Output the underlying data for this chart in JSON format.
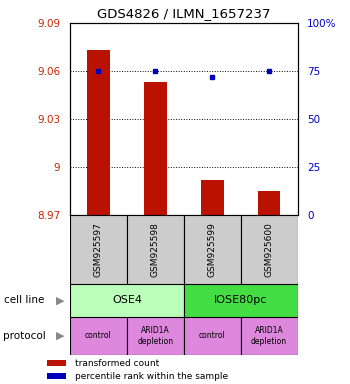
{
  "title": "GDS4826 / ILMN_1657237",
  "samples": [
    "GSM925597",
    "GSM925598",
    "GSM925599",
    "GSM925600"
  ],
  "bar_values": [
    9.073,
    9.053,
    8.992,
    8.985
  ],
  "dot_values": [
    75,
    75,
    72,
    75
  ],
  "ylim_left": [
    8.97,
    9.09
  ],
  "ylim_right": [
    0,
    100
  ],
  "yticks_left": [
    8.97,
    9.0,
    9.03,
    9.06,
    9.09
  ],
  "yticks_right": [
    0,
    25,
    50,
    75,
    100
  ],
  "ytick_labels_left": [
    "8.97",
    "9",
    "9.03",
    "9.06",
    "9.09"
  ],
  "ytick_labels_right": [
    "0",
    "25",
    "50",
    "75",
    "100%"
  ],
  "bar_color": "#bb1100",
  "dot_color": "#0000bb",
  "bar_bottom": 8.97,
  "cell_line_labels": [
    "OSE4",
    "IOSE80pc"
  ],
  "cell_line_colors": [
    "#bbffbb",
    "#44dd44"
  ],
  "cell_line_spans": [
    [
      0,
      2
    ],
    [
      2,
      4
    ]
  ],
  "protocol_labels": [
    "control",
    "ARID1A\ndepletion",
    "control",
    "ARID1A\ndepletion"
  ],
  "protocol_color": "#dd88dd",
  "sample_box_color": "#cccccc",
  "legend_bar_label": "transformed count",
  "legend_dot_label": "percentile rank within the sample",
  "left_label_color": "#cc2200",
  "right_label_color": "#0000cc",
  "cell_line_row_label": "cell line",
  "protocol_row_label": "protocol",
  "grid_color": "#000000",
  "background_color": "#ffffff"
}
